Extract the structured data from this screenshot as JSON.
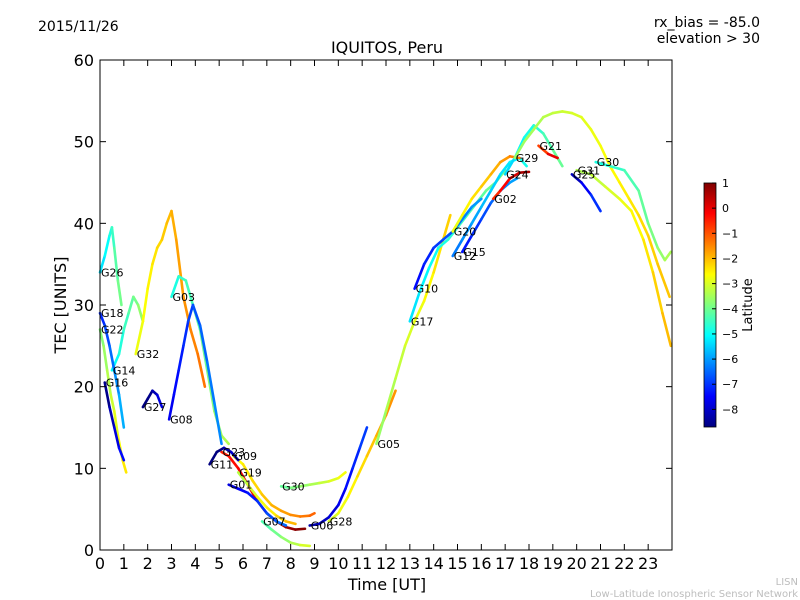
{
  "header": {
    "date": "2015/11/26",
    "bias": "rx_bias = -85.0",
    "elevation": "elevation > 30"
  },
  "footer": {
    "line1": "LISN",
    "line2": "Low-Latitude Ionospheric Sensor Network"
  },
  "colorbar": {
    "label": "Latitude",
    "min": -8.7,
    "max": 1.0,
    "ticks": [
      1,
      0,
      -1,
      -2,
      -3,
      -4,
      -5,
      -6,
      -7,
      -8
    ],
    "colormap": [
      "#00007f",
      "#0000ff",
      "#007fff",
      "#00ffff",
      "#7fff7f",
      "#ffff00",
      "#ff7f00",
      "#ff0000",
      "#7f0000"
    ]
  },
  "chart_data": {
    "type": "scatter",
    "title": "IQUITOS, Peru",
    "xlabel": "Time [UT]",
    "ylabel": "TEC [UNITS]",
    "xlim": [
      0,
      24
    ],
    "ylim": [
      0,
      60
    ],
    "xticks": [
      0,
      1,
      2,
      3,
      4,
      5,
      6,
      7,
      8,
      9,
      10,
      11,
      12,
      13,
      14,
      15,
      16,
      17,
      18,
      19,
      20,
      21,
      22,
      23
    ],
    "yticks": [
      0,
      10,
      20,
      30,
      40,
      50,
      60
    ],
    "grid": false,
    "series": [
      {
        "name": "G26",
        "lat": -4.5,
        "points": [
          [
            0.0,
            34
          ],
          [
            0.2,
            36
          ],
          [
            0.4,
            38.5
          ],
          [
            0.5,
            39.5
          ],
          [
            0.6,
            37
          ],
          [
            0.75,
            33
          ],
          [
            0.9,
            30
          ]
        ]
      },
      {
        "name": "G14",
        "lat": -4.2,
        "points": [
          [
            0.5,
            22
          ],
          [
            0.8,
            24
          ],
          [
            1.0,
            27
          ],
          [
            1.2,
            29
          ],
          [
            1.4,
            31
          ],
          [
            1.6,
            30
          ],
          [
            1.8,
            28
          ]
        ]
      },
      {
        "name": "G18",
        "lat": -6.3,
        "points": [
          [
            0.0,
            29
          ],
          [
            0.2,
            27.5
          ],
          [
            0.4,
            25
          ],
          [
            0.6,
            22
          ],
          [
            0.8,
            19
          ],
          [
            1.0,
            15
          ]
        ]
      },
      {
        "name": "G22",
        "lat": -3.0,
        "points": [
          [
            0.0,
            27
          ],
          [
            0.15,
            25
          ],
          [
            0.3,
            22
          ],
          [
            0.45,
            19
          ],
          [
            0.6,
            17
          ],
          [
            0.75,
            14
          ],
          [
            0.95,
            11
          ],
          [
            1.1,
            9.5
          ]
        ]
      },
      {
        "name": "G32",
        "lat": -2.0,
        "points": [
          [
            1.5,
            24
          ],
          [
            1.8,
            28
          ],
          [
            2.0,
            32
          ],
          [
            2.2,
            35
          ],
          [
            2.4,
            37
          ],
          [
            2.6,
            38
          ],
          [
            2.8,
            40
          ],
          [
            3.0,
            41.5
          ],
          [
            3.2,
            38
          ],
          [
            3.5,
            31
          ],
          [
            3.8,
            27
          ],
          [
            4.1,
            24
          ],
          [
            4.4,
            20
          ]
        ]
      },
      {
        "name": "G03",
        "lat": -4.0,
        "points": [
          [
            3.0,
            31
          ],
          [
            3.3,
            33.5
          ],
          [
            3.6,
            33
          ],
          [
            3.9,
            30
          ],
          [
            4.2,
            27
          ],
          [
            4.5,
            22
          ],
          [
            4.8,
            17
          ],
          [
            5.1,
            14
          ],
          [
            5.4,
            13
          ]
        ]
      },
      {
        "name": "G16",
        "lat": -7.8,
        "points": [
          [
            0.2,
            20.5
          ],
          [
            0.4,
            17.5
          ],
          [
            0.6,
            15
          ],
          [
            0.8,
            12.5
          ],
          [
            1.0,
            11
          ]
        ]
      },
      {
        "name": "G27",
        "lat": -8.2,
        "points": [
          [
            1.8,
            17.5
          ],
          [
            2.0,
            18.5
          ],
          [
            2.2,
            19.5
          ],
          [
            2.4,
            19
          ],
          [
            2.6,
            17.5
          ]
        ]
      },
      {
        "name": "G08",
        "lat": -6.8,
        "points": [
          [
            2.9,
            16
          ],
          [
            3.1,
            19
          ],
          [
            3.3,
            22
          ],
          [
            3.5,
            25
          ],
          [
            3.7,
            28
          ],
          [
            3.9,
            30
          ],
          [
            4.2,
            27.5
          ],
          [
            4.5,
            23
          ],
          [
            4.8,
            18
          ],
          [
            5.1,
            13
          ]
        ]
      },
      {
        "name": "G23",
        "lat": 0.3,
        "points": [
          [
            5.1,
            12
          ],
          [
            5.4,
            11.5
          ],
          [
            5.8,
            10
          ],
          [
            6.2,
            8
          ],
          [
            6.6,
            6
          ],
          [
            7.0,
            4.5
          ],
          [
            7.4,
            3.5
          ],
          [
            7.8,
            2.8
          ],
          [
            8.2,
            2.5
          ],
          [
            8.6,
            2.6
          ]
        ]
      },
      {
        "name": "G09",
        "lat": -1.8,
        "points": [
          [
            5.6,
            11.5
          ],
          [
            6.0,
            10.5
          ],
          [
            6.4,
            8.5
          ],
          [
            6.8,
            6.8
          ],
          [
            7.2,
            5.5
          ],
          [
            7.6,
            4.8
          ],
          [
            8.0,
            4.3
          ],
          [
            8.4,
            4.1
          ],
          [
            8.8,
            4.2
          ],
          [
            9.0,
            4.5
          ]
        ]
      },
      {
        "name": "G11",
        "lat": -8.3,
        "points": [
          [
            4.6,
            10.5
          ],
          [
            4.9,
            12
          ],
          [
            5.2,
            12.5
          ],
          [
            5.5,
            12
          ],
          [
            5.8,
            11
          ]
        ]
      },
      {
        "name": "G19",
        "lat": -2.5,
        "points": [
          [
            5.8,
            9.5
          ],
          [
            6.2,
            8
          ],
          [
            6.6,
            6.5
          ],
          [
            7.0,
            5.2
          ],
          [
            7.4,
            4.2
          ],
          [
            7.8,
            3.5
          ],
          [
            8.2,
            3.2
          ]
        ]
      },
      {
        "name": "G01",
        "lat": -7.0,
        "points": [
          [
            5.4,
            8
          ],
          [
            5.8,
            7.5
          ],
          [
            6.2,
            7
          ],
          [
            6.6,
            6
          ],
          [
            7.0,
            4.5
          ],
          [
            7.4,
            3.5
          ],
          [
            7.8,
            3
          ]
        ]
      },
      {
        "name": "G07",
        "lat": -3.5,
        "points": [
          [
            6.8,
            3.5
          ],
          [
            7.2,
            2.5
          ],
          [
            7.6,
            1.6
          ],
          [
            8.0,
            0.9
          ],
          [
            8.4,
            0.6
          ],
          [
            8.8,
            0.5
          ]
        ]
      },
      {
        "name": "G06",
        "lat": -7.5,
        "points": [
          [
            8.8,
            3.0
          ],
          [
            9.2,
            3.2
          ],
          [
            9.6,
            4
          ],
          [
            10.0,
            5.5
          ],
          [
            10.3,
            7.5
          ],
          [
            10.6,
            10
          ],
          [
            10.9,
            12.5
          ],
          [
            11.2,
            15
          ]
        ]
      },
      {
        "name": "G30",
        "lat": -3.3,
        "points": [
          [
            7.6,
            7.8
          ],
          [
            8.0,
            7.6
          ],
          [
            8.4,
            7.8
          ],
          [
            8.8,
            8
          ],
          [
            9.2,
            8.2
          ],
          [
            9.6,
            8.4
          ],
          [
            10.0,
            8.8
          ],
          [
            10.3,
            9.5
          ]
        ]
      },
      {
        "name": "G28",
        "lat": -2.2,
        "points": [
          [
            9.6,
            3.5
          ],
          [
            10.0,
            4.5
          ],
          [
            10.4,
            6.5
          ],
          [
            10.8,
            9
          ],
          [
            11.2,
            11.5
          ],
          [
            11.6,
            14
          ],
          [
            12.0,
            16.5
          ],
          [
            12.4,
            19.5
          ]
        ]
      },
      {
        "name": "G05",
        "lat": -2.8,
        "points": [
          [
            11.6,
            13
          ],
          [
            12.0,
            17
          ],
          [
            12.4,
            21
          ],
          [
            12.8,
            25
          ],
          [
            13.2,
            28
          ],
          [
            13.6,
            30.5
          ],
          [
            14.0,
            34
          ],
          [
            14.4,
            38
          ],
          [
            14.7,
            41
          ]
        ]
      },
      {
        "name": "G17",
        "lat": -4.5,
        "points": [
          [
            13.0,
            28
          ],
          [
            13.4,
            31.5
          ],
          [
            13.8,
            34.5
          ],
          [
            14.2,
            37
          ],
          [
            14.6,
            38
          ],
          [
            15.0,
            39.5
          ],
          [
            15.4,
            41
          ],
          [
            15.8,
            42.5
          ],
          [
            16.2,
            44
          ],
          [
            16.6,
            45
          ],
          [
            17.0,
            46.5
          ]
        ]
      },
      {
        "name": "G10",
        "lat": -6.6,
        "points": [
          [
            13.2,
            32
          ],
          [
            13.6,
            35
          ],
          [
            14.0,
            37
          ],
          [
            14.4,
            38
          ],
          [
            14.8,
            39
          ],
          [
            15.2,
            40.5
          ],
          [
            15.6,
            42
          ],
          [
            16.0,
            43
          ]
        ]
      },
      {
        "name": "G12",
        "lat": -5.5,
        "points": [
          [
            14.8,
            36
          ],
          [
            15.2,
            38
          ],
          [
            15.6,
            40
          ],
          [
            16.0,
            42
          ],
          [
            16.4,
            44
          ],
          [
            16.8,
            46
          ],
          [
            17.2,
            47.5
          ],
          [
            17.6,
            48
          ],
          [
            17.9,
            47
          ]
        ]
      },
      {
        "name": "G15",
        "lat": -6.5,
        "points": [
          [
            15.2,
            36.5
          ],
          [
            15.6,
            38.5
          ],
          [
            16.0,
            40.5
          ],
          [
            16.4,
            42.5
          ],
          [
            16.8,
            44
          ],
          [
            17.2,
            45
          ],
          [
            17.5,
            45.5
          ]
        ]
      },
      {
        "name": "G20",
        "lat": -2.0,
        "points": [
          [
            14.8,
            39
          ],
          [
            15.2,
            41
          ],
          [
            15.6,
            43
          ],
          [
            16.0,
            44.5
          ],
          [
            16.4,
            46
          ],
          [
            16.8,
            47.5
          ],
          [
            17.2,
            48.2
          ],
          [
            17.6,
            48
          ]
        ]
      },
      {
        "name": "G02",
        "lat": 0.2,
        "points": [
          [
            16.5,
            43
          ],
          [
            16.8,
            44
          ],
          [
            17.2,
            45.5
          ],
          [
            17.6,
            46.2
          ],
          [
            18.0,
            46.3
          ]
        ]
      },
      {
        "name": "G24",
        "lat": -4.6,
        "points": [
          [
            17.0,
            46
          ],
          [
            17.4,
            48
          ],
          [
            17.8,
            50.5
          ],
          [
            18.2,
            52
          ],
          [
            18.6,
            51
          ],
          [
            19.0,
            49
          ],
          [
            19.4,
            47
          ]
        ]
      },
      {
        "name": "G29",
        "lat": -2.8,
        "points": [
          [
            17.4,
            48
          ],
          [
            17.8,
            50
          ],
          [
            18.2,
            51.5
          ],
          [
            18.6,
            53
          ],
          [
            19.0,
            53.5
          ],
          [
            19.4,
            53.7
          ],
          [
            19.8,
            53.5
          ],
          [
            20.2,
            53
          ],
          [
            20.6,
            51.5
          ],
          [
            21.0,
            49.5
          ],
          [
            21.4,
            47
          ],
          [
            21.8,
            45
          ],
          [
            22.2,
            43
          ],
          [
            22.6,
            41
          ],
          [
            23.0,
            38.5
          ],
          [
            23.4,
            35
          ],
          [
            23.9,
            31
          ]
        ]
      },
      {
        "name": "G21",
        "lat": 0.0,
        "points": [
          [
            18.4,
            49.5
          ],
          [
            18.8,
            48.5
          ],
          [
            19.2,
            48
          ]
        ]
      },
      {
        "name": "G25",
        "lat": -7.3,
        "points": [
          [
            19.8,
            46
          ],
          [
            20.2,
            45
          ],
          [
            20.6,
            43.5
          ],
          [
            21.0,
            41.5
          ]
        ]
      },
      {
        "name": "G31",
        "lat": -2.6,
        "points": [
          [
            20.0,
            46.5
          ],
          [
            20.6,
            46
          ],
          [
            21.2,
            44.5
          ],
          [
            21.8,
            43
          ],
          [
            22.3,
            41.5
          ],
          [
            22.8,
            38
          ],
          [
            23.2,
            34
          ],
          [
            23.6,
            29
          ],
          [
            23.95,
            25
          ]
        ]
      },
      {
        "name": "G30",
        "lat": -4.0,
        "points": [
          [
            20.8,
            47.5
          ],
          [
            21.4,
            47
          ],
          [
            22.0,
            46.5
          ],
          [
            22.6,
            44
          ],
          [
            23.0,
            40
          ],
          [
            23.4,
            37
          ],
          [
            23.7,
            35.5
          ],
          [
            23.95,
            36.5
          ]
        ]
      }
    ]
  }
}
